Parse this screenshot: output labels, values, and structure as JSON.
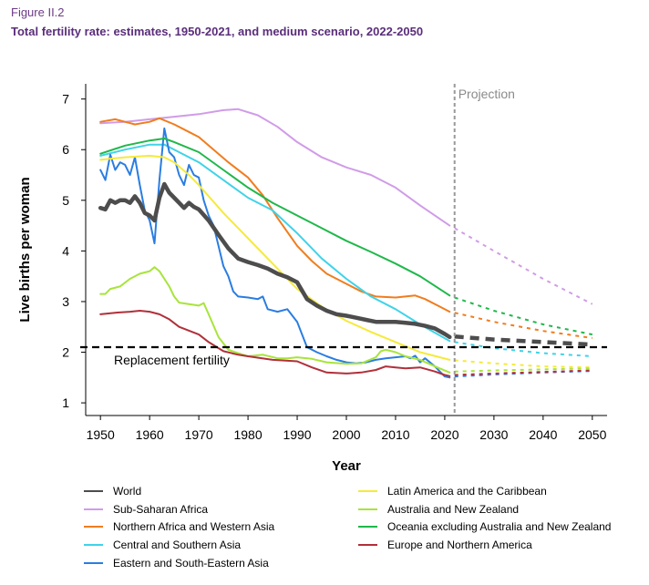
{
  "figure_label": "Figure II.2",
  "figure_title": "Total fertility rate: estimates, 1950-2021, and medium scenario, 2022-2050",
  "chart_data": {
    "type": "line",
    "xlabel": "Year",
    "ylabel": "Live births per woman",
    "xlim": [
      1947,
      2053
    ],
    "ylim": [
      0.75,
      7.3
    ],
    "x_ticks": [
      1950,
      1960,
      1970,
      1980,
      1990,
      2000,
      2010,
      2020,
      2030,
      2040,
      2050
    ],
    "y_ticks": [
      1,
      2,
      3,
      4,
      5,
      6,
      7
    ],
    "grid": false,
    "projection_start": 2022,
    "projection_label": "Projection",
    "replacement_fertility": 2.1,
    "replacement_label": "Replacement fertility",
    "legend_position": "bottom",
    "series": [
      {
        "name": "World",
        "color": "#4d4d4d",
        "x": [
          1950,
          1951,
          1952,
          1953,
          1954,
          1955,
          1956,
          1957,
          1958,
          1959,
          1960,
          1961,
          1962,
          1963,
          1964,
          1965,
          1966,
          1967,
          1968,
          1969,
          1970,
          1972,
          1974,
          1976,
          1978,
          1980,
          1982,
          1984,
          1986,
          1988,
          1990,
          1992,
          1994,
          1996,
          1998,
          2000,
          2002,
          2004,
          2006,
          2008,
          2010,
          2012,
          2014,
          2016,
          2018,
          2020,
          2021
        ],
        "y": [
          4.85,
          4.82,
          5.0,
          4.95,
          5.0,
          5.0,
          4.95,
          5.08,
          4.95,
          4.75,
          4.7,
          4.6,
          5.05,
          5.32,
          5.15,
          5.05,
          4.95,
          4.85,
          4.95,
          4.87,
          4.82,
          4.6,
          4.32,
          4.05,
          3.85,
          3.78,
          3.72,
          3.65,
          3.55,
          3.48,
          3.38,
          3.05,
          2.92,
          2.82,
          2.75,
          2.72,
          2.68,
          2.64,
          2.6,
          2.6,
          2.6,
          2.58,
          2.56,
          2.52,
          2.47,
          2.36,
          2.3
        ],
        "proj_x": [
          2022,
          2030,
          2040,
          2050
        ],
        "proj_y": [
          2.31,
          2.25,
          2.2,
          2.15
        ]
      },
      {
        "name": "Sub-Saharan Africa",
        "color": "#d09ce8",
        "x": [
          1950,
          1955,
          1960,
          1965,
          1970,
          1975,
          1978,
          1982,
          1986,
          1990,
          1995,
          2000,
          2005,
          2010,
          2015,
          2021
        ],
        "y": [
          6.52,
          6.55,
          6.6,
          6.65,
          6.7,
          6.78,
          6.8,
          6.68,
          6.45,
          6.15,
          5.85,
          5.65,
          5.5,
          5.25,
          4.9,
          4.5
        ],
        "proj_x": [
          2022,
          2030,
          2040,
          2050
        ],
        "proj_y": [
          4.45,
          4.0,
          3.45,
          2.95
        ]
      },
      {
        "name": "Northern Africa and Western Asia",
        "color": "#f07d1e",
        "x": [
          1950,
          1953,
          1955,
          1957,
          1960,
          1962,
          1965,
          1968,
          1970,
          1973,
          1976,
          1980,
          1983,
          1986,
          1990,
          1993,
          1996,
          2000,
          2003,
          2006,
          2010,
          2014,
          2016,
          2019,
          2021
        ],
        "y": [
          6.55,
          6.6,
          6.55,
          6.5,
          6.55,
          6.62,
          6.5,
          6.35,
          6.25,
          6.0,
          5.75,
          5.45,
          5.1,
          4.65,
          4.1,
          3.8,
          3.55,
          3.35,
          3.2,
          3.1,
          3.08,
          3.12,
          3.05,
          2.9,
          2.8
        ],
        "proj_x": [
          2022,
          2030,
          2040,
          2050
        ],
        "proj_y": [
          2.78,
          2.6,
          2.42,
          2.28
        ]
      },
      {
        "name": "Central and Southern Asia",
        "color": "#3fd3e8",
        "x": [
          1950,
          1955,
          1960,
          1963,
          1966,
          1970,
          1975,
          1980,
          1985,
          1990,
          1995,
          2000,
          2005,
          2010,
          2015,
          2021
        ],
        "y": [
          5.88,
          6.0,
          6.1,
          6.1,
          5.95,
          5.75,
          5.4,
          5.05,
          4.8,
          4.35,
          3.85,
          3.45,
          3.1,
          2.85,
          2.55,
          2.22
        ],
        "proj_x": [
          2022,
          2030,
          2040,
          2050
        ],
        "proj_y": [
          2.2,
          2.08,
          1.98,
          1.92
        ]
      },
      {
        "name": "Eastern and South-Eastern Asia",
        "color": "#2a7de1",
        "x": [
          1950,
          1951,
          1952,
          1953,
          1954,
          1955,
          1956,
          1957,
          1958,
          1959,
          1960,
          1961,
          1962,
          1963,
          1964,
          1965,
          1966,
          1967,
          1968,
          1969,
          1970,
          1971,
          1972,
          1973,
          1974,
          1975,
          1976,
          1977,
          1978,
          1980,
          1982,
          1983,
          1984,
          1986,
          1988,
          1990,
          1992,
          1994,
          1996,
          1998,
          2000,
          2002,
          2004,
          2006,
          2008,
          2010,
          2012,
          2013,
          2014,
          2015,
          2016,
          2018,
          2019,
          2020,
          2021
        ],
        "y": [
          5.6,
          5.4,
          5.9,
          5.6,
          5.75,
          5.7,
          5.5,
          5.85,
          5.3,
          4.8,
          4.6,
          4.15,
          5.4,
          6.42,
          5.95,
          5.85,
          5.5,
          5.3,
          5.7,
          5.5,
          5.45,
          5.0,
          4.7,
          4.5,
          4.1,
          3.7,
          3.5,
          3.2,
          3.1,
          3.08,
          3.05,
          3.1,
          2.85,
          2.8,
          2.85,
          2.6,
          2.1,
          2.0,
          1.92,
          1.85,
          1.8,
          1.78,
          1.8,
          1.85,
          1.88,
          1.9,
          1.92,
          1.88,
          1.93,
          1.8,
          1.88,
          1.72,
          1.62,
          1.52,
          1.5
        ],
        "proj_x": [
          2022,
          2030,
          2040,
          2050
        ],
        "proj_y": [
          1.52,
          1.56,
          1.6,
          1.63
        ]
      },
      {
        "name": "Latin America and the Caribbean",
        "color": "#f5ea3c",
        "x": [
          1950,
          1955,
          1960,
          1963,
          1965,
          1968,
          1970,
          1975,
          1980,
          1985,
          1990,
          1995,
          2000,
          2005,
          2010,
          2015,
          2021
        ],
        "y": [
          5.8,
          5.85,
          5.88,
          5.85,
          5.75,
          5.5,
          5.3,
          4.75,
          4.25,
          3.75,
          3.25,
          2.9,
          2.62,
          2.4,
          2.2,
          2.0,
          1.85
        ],
        "proj_x": [
          2022,
          2030,
          2040,
          2050
        ],
        "proj_y": [
          1.84,
          1.78,
          1.72,
          1.7
        ]
      },
      {
        "name": "Australia and New Zealand",
        "color": "#a8e43b",
        "x": [
          1950,
          1951,
          1952,
          1954,
          1956,
          1958,
          1960,
          1961,
          1962,
          1963,
          1964,
          1965,
          1966,
          1968,
          1970,
          1971,
          1972,
          1974,
          1976,
          1978,
          1980,
          1983,
          1986,
          1988,
          1990,
          1993,
          1996,
          2000,
          2003,
          2006,
          2007,
          2008,
          2010,
          2012,
          2015,
          2018,
          2021
        ],
        "y": [
          3.15,
          3.15,
          3.25,
          3.3,
          3.45,
          3.55,
          3.6,
          3.68,
          3.6,
          3.45,
          3.3,
          3.1,
          2.98,
          2.95,
          2.92,
          2.97,
          2.75,
          2.3,
          2.05,
          1.98,
          1.92,
          1.95,
          1.88,
          1.88,
          1.9,
          1.87,
          1.8,
          1.77,
          1.78,
          1.9,
          2.02,
          2.05,
          2.0,
          1.92,
          1.85,
          1.72,
          1.6
        ],
        "proj_x": [
          2022,
          2030,
          2040,
          2050
        ],
        "proj_y": [
          1.62,
          1.64,
          1.66,
          1.68
        ]
      },
      {
        "name": "Oceania excluding Australia and New Zealand",
        "color": "#1fb84a",
        "x": [
          1950,
          1955,
          1960,
          1963,
          1965,
          1970,
          1975,
          1980,
          1985,
          1990,
          1995,
          2000,
          2005,
          2010,
          2015,
          2021
        ],
        "y": [
          5.92,
          6.08,
          6.18,
          6.22,
          6.15,
          5.95,
          5.6,
          5.25,
          4.95,
          4.7,
          4.45,
          4.2,
          3.98,
          3.75,
          3.5,
          3.12
        ],
        "proj_x": [
          2022,
          2030,
          2040,
          2050
        ],
        "proj_y": [
          3.08,
          2.82,
          2.55,
          2.35
        ]
      },
      {
        "name": "Europe and Northern America",
        "color": "#b0303a",
        "x": [
          1950,
          1953,
          1956,
          1958,
          1960,
          1962,
          1964,
          1966,
          1970,
          1972,
          1975,
          1978,
          1980,
          1985,
          1990,
          1993,
          1996,
          2000,
          2003,
          2006,
          2008,
          2010,
          2012,
          2015,
          2018,
          2020,
          2021
        ],
        "y": [
          2.75,
          2.78,
          2.8,
          2.82,
          2.8,
          2.75,
          2.65,
          2.5,
          2.35,
          2.2,
          2.02,
          1.95,
          1.92,
          1.85,
          1.82,
          1.7,
          1.6,
          1.58,
          1.6,
          1.65,
          1.72,
          1.7,
          1.68,
          1.7,
          1.62,
          1.55,
          1.53
        ],
        "proj_x": [
          2022,
          2030,
          2040,
          2050
        ],
        "proj_y": [
          1.55,
          1.58,
          1.61,
          1.64
        ]
      }
    ]
  }
}
